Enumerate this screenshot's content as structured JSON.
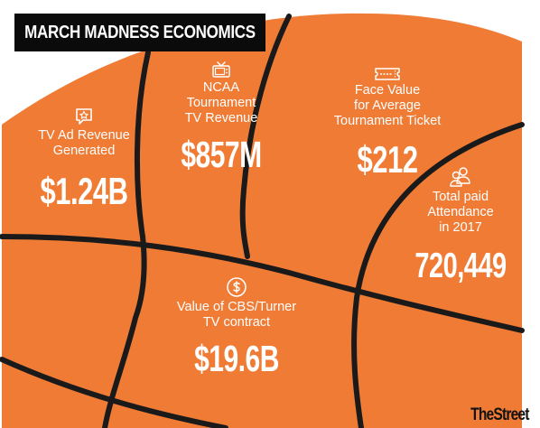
{
  "title": "MARCH MADNESS ECONOMICS",
  "colors": {
    "ball": "#ef7b35",
    "seams": "#1a1a1a",
    "title_bg": "#0b0b0b",
    "text": "#ffffff"
  },
  "stats": {
    "ad_revenue": {
      "icon": "star-speech-bubble-icon",
      "label_lines": [
        "TV Ad Revenue",
        "Generated"
      ],
      "value": "$1.24B"
    },
    "tv_revenue": {
      "icon": "television-icon",
      "label_lines": [
        "NCAA",
        "Tournament",
        "TV Revenue"
      ],
      "value": "$857M"
    },
    "ticket": {
      "icon": "ticket-icon",
      "label_lines": [
        "Face Value",
        "for Average",
        "Tournament Ticket"
      ],
      "value": "$212"
    },
    "attendance": {
      "icon": "people-icon",
      "label_lines": [
        "Total paid",
        "Attendance",
        "in 2017"
      ],
      "value": "720,449"
    },
    "cbs_contract": {
      "icon": "dollar-coin-icon",
      "label_lines": [
        "Value of CBS/Turner",
        "TV contract"
      ],
      "value": "$19.6B"
    }
  },
  "brand": "TheStreet"
}
